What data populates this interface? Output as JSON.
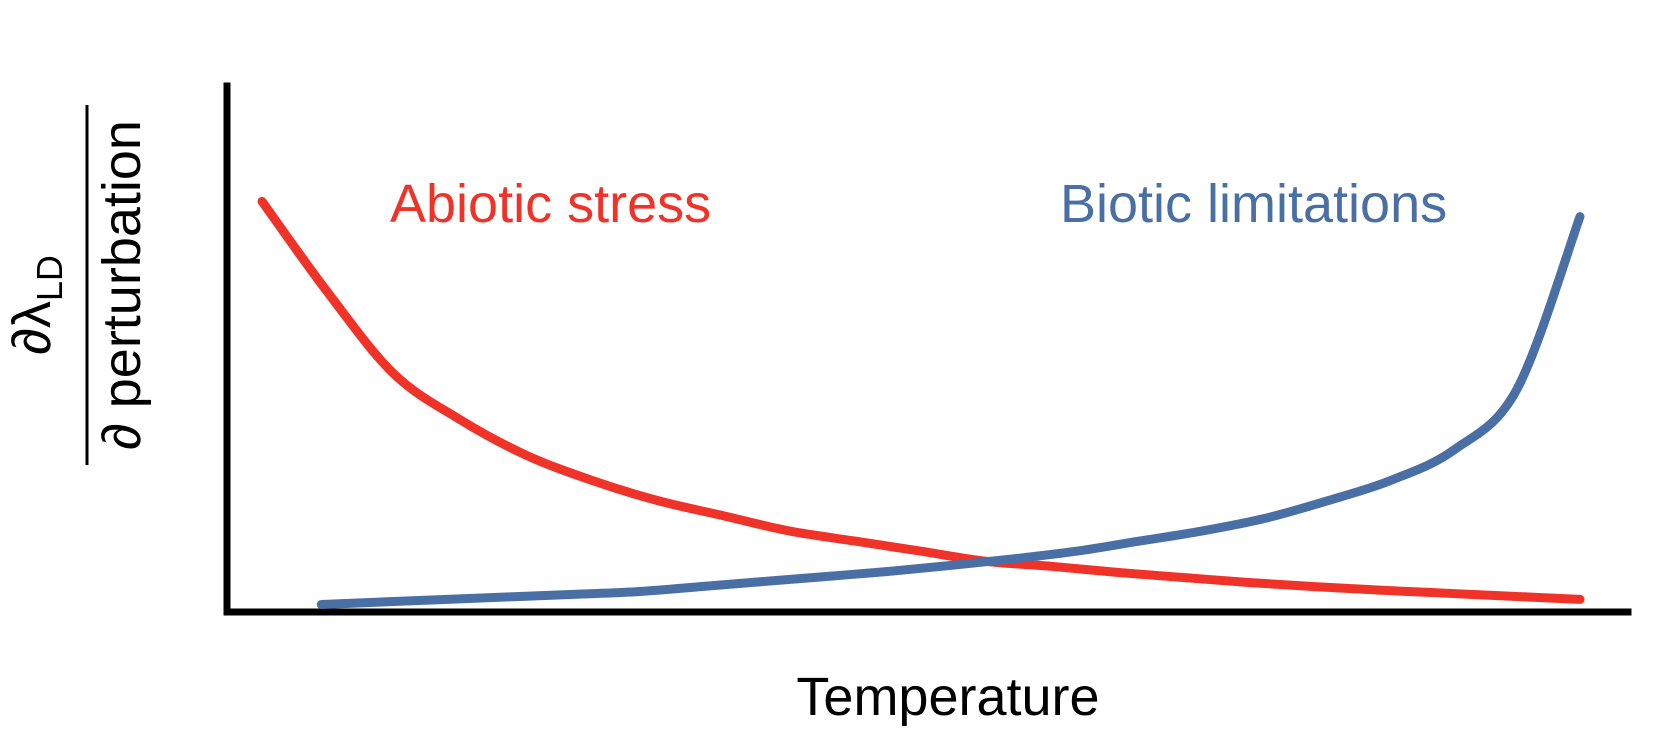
{
  "chart_data": {
    "type": "line",
    "xlabel": "Temperature",
    "ylabel": {
      "numerator_symbol": "∂λ",
      "numerator_subscript": "LD",
      "denominator": "∂ perturbation"
    },
    "x": [
      0.0,
      0.05,
      0.1,
      0.15,
      0.2,
      0.25,
      0.3,
      0.35,
      0.4,
      0.45,
      0.5,
      0.55,
      0.6,
      0.65,
      0.7,
      0.75,
      0.8,
      0.85,
      0.9,
      0.95,
      1.0
    ],
    "xlim": [
      0,
      1
    ],
    "ylim": [
      0,
      1
    ],
    "grid": false,
    "series": [
      {
        "name": "Abiotic stress",
        "color": "#f03328",
        "values": [
          0.8,
          0.62,
          0.46,
          0.37,
          0.3,
          0.25,
          0.21,
          0.18,
          0.15,
          0.13,
          0.11,
          0.09,
          0.08,
          0.068,
          0.058,
          0.048,
          0.04,
          0.033,
          0.027,
          0.021,
          0.015
        ]
      },
      {
        "name": "Biotic limitations",
        "color": "#4a6fa5",
        "values": [
          0.005,
          0.01,
          0.015,
          0.02,
          0.025,
          0.03,
          0.04,
          0.05,
          0.06,
          0.07,
          0.082,
          0.095,
          0.11,
          0.13,
          0.15,
          0.175,
          0.21,
          0.25,
          0.31,
          0.43,
          0.77
        ],
        "x_start": 0.045
      }
    ]
  }
}
